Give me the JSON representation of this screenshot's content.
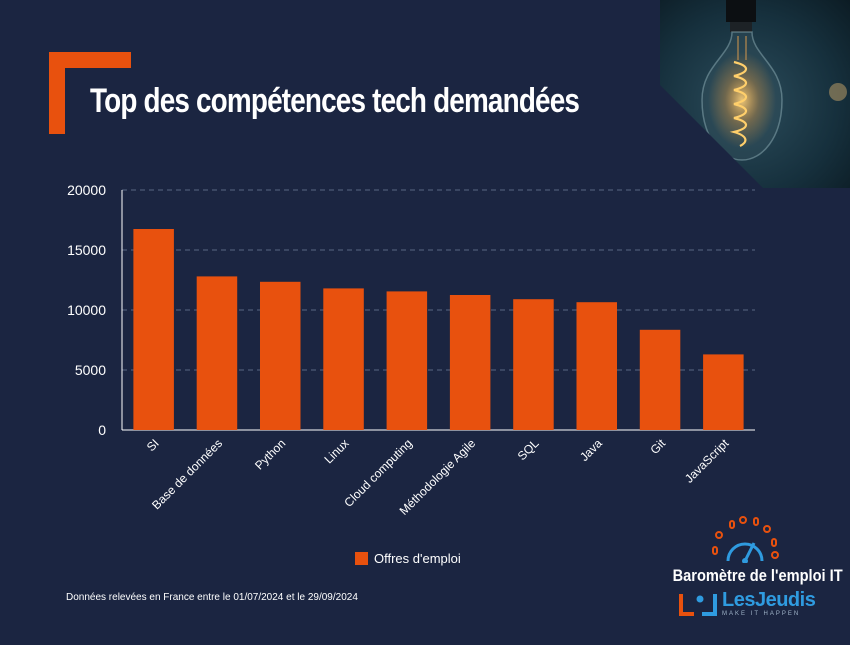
{
  "header": {
    "title": "Top des compétences tech demandées"
  },
  "colors": {
    "background": "#1b2541",
    "accent": "#e8510e",
    "brand_blue": "#2f9be0"
  },
  "chart_data": {
    "type": "bar",
    "title": "Top des compétences tech demandées",
    "categories": [
      "SI",
      "Base de données",
      "Python",
      "Linux",
      "Cloud computing",
      "Méthodologie Agile",
      "SQL",
      "Java",
      "Git",
      "JavaScript"
    ],
    "series": [
      {
        "name": "Offres d'emploi",
        "values": [
          16750,
          12800,
          12350,
          11800,
          11550,
          11250,
          10900,
          10650,
          8350,
          6300
        ]
      }
    ],
    "y_ticks": [
      0,
      5000,
      10000,
      15000,
      20000
    ],
    "y_tick_labels": [
      "0",
      "5000",
      "10000",
      "15000",
      "20000"
    ],
    "ylim": [
      0,
      20000
    ],
    "xlabel": "",
    "ylabel": "",
    "grid": true,
    "legend_position": "bottom-center"
  },
  "legend": {
    "label": "Offres d'emploi"
  },
  "footer": {
    "note": "Données relevées en France entre le 01/07/2024 et le 29/09/2024"
  },
  "brand": {
    "barometer_label": "Baromètre de l'emploi IT",
    "logo_name": "LesJeudis",
    "logo_tagline": "MAKE IT HAPPEN"
  }
}
